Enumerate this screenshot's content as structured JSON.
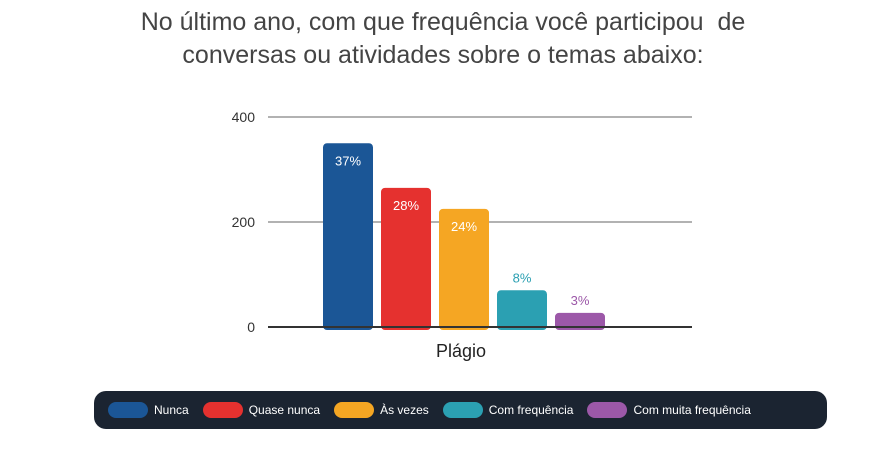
{
  "title_lines": [
    "No último ano, com que frequência você participou  de",
    "conversas ou atividades sobre o temas abaixo:"
  ],
  "chart_data": {
    "type": "bar",
    "categories": [
      "Plágio"
    ],
    "xlabel": "Plágio",
    "ylim": [
      0,
      400
    ],
    "yticks": [
      0,
      200,
      400
    ],
    "grid": true,
    "legend_position": "bottom",
    "series": [
      {
        "name": "Nunca",
        "value": 350,
        "label": "37%",
        "color": "#1b5696"
      },
      {
        "name": "Quase nunca",
        "value": 265,
        "label": "28%",
        "color": "#e5312f"
      },
      {
        "name": "Às vezes",
        "value": 225,
        "label": "24%",
        "color": "#f5a623"
      },
      {
        "name": "Com frequência",
        "value": 70,
        "label": "8%",
        "color": "#2ba0b2"
      },
      {
        "name": "Com muita frequência",
        "value": 27,
        "label": "3%",
        "color": "#9c58a8"
      }
    ]
  }
}
